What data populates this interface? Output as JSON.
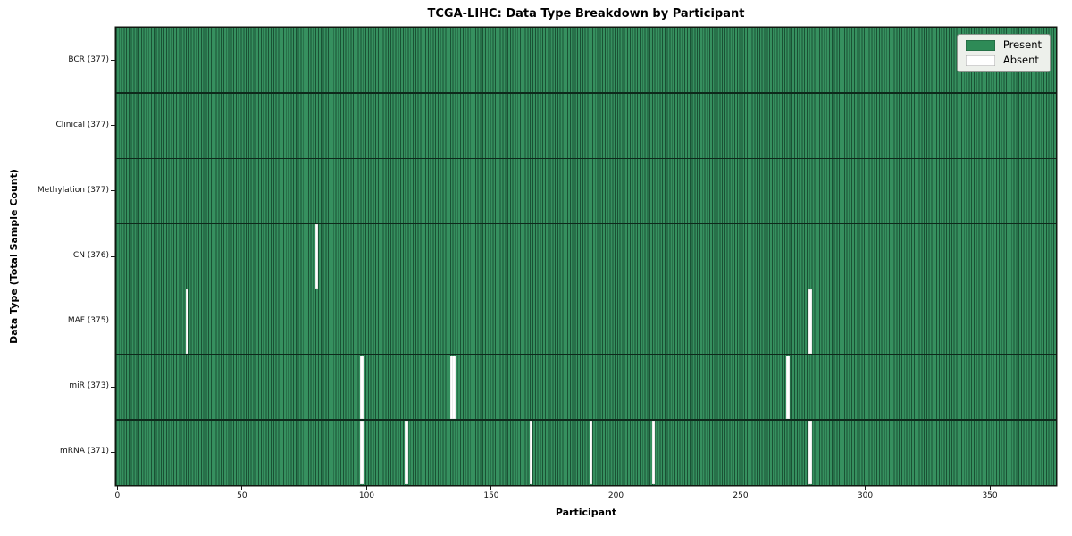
{
  "chart_data": {
    "type": "heatmap",
    "title": "TCGA-LIHC: Data Type Breakdown by Participant",
    "xlabel": "Participant",
    "ylabel": "Data Type (Total Sample Count)",
    "x_ticks": [
      0,
      50,
      100,
      150,
      200,
      250,
      300,
      350
    ],
    "xlim": [
      -0.5,
      376.5
    ],
    "n_participants": 377,
    "grid": false,
    "legend_position": "upper right",
    "rows": [
      {
        "label": "BCR (377)",
        "data_type": "BCR",
        "present_count": 377,
        "absent_participants": []
      },
      {
        "label": "Clinical (377)",
        "data_type": "Clinical",
        "present_count": 377,
        "absent_participants": []
      },
      {
        "label": "Methylation (377)",
        "data_type": "Methylation",
        "present_count": 377,
        "absent_participants": []
      },
      {
        "label": "CN (376)",
        "data_type": "CN",
        "present_count": 376,
        "absent_participants": [
          80
        ]
      },
      {
        "label": "MAF (375)",
        "data_type": "MAF",
        "present_count": 375,
        "absent_participants": [
          28,
          278
        ]
      },
      {
        "label": "miR (373)",
        "data_type": "miR",
        "present_count": 373,
        "absent_participants": [
          98,
          134,
          135,
          269
        ]
      },
      {
        "label": "mRNA (371)",
        "data_type": "mRNA",
        "present_count": 371,
        "absent_participants": [
          98,
          116,
          166,
          190,
          215,
          278
        ]
      }
    ],
    "legend": [
      {
        "label": "Present",
        "color": "#2e8b57"
      },
      {
        "label": "Absent",
        "color": "#ffffff"
      }
    ],
    "colors": {
      "present_fill": "#36905f",
      "bar_edge": "#0e291b",
      "absent_fill": "#ffffff",
      "plot_border": "#101810",
      "legend_background": "#edf0eb"
    }
  }
}
